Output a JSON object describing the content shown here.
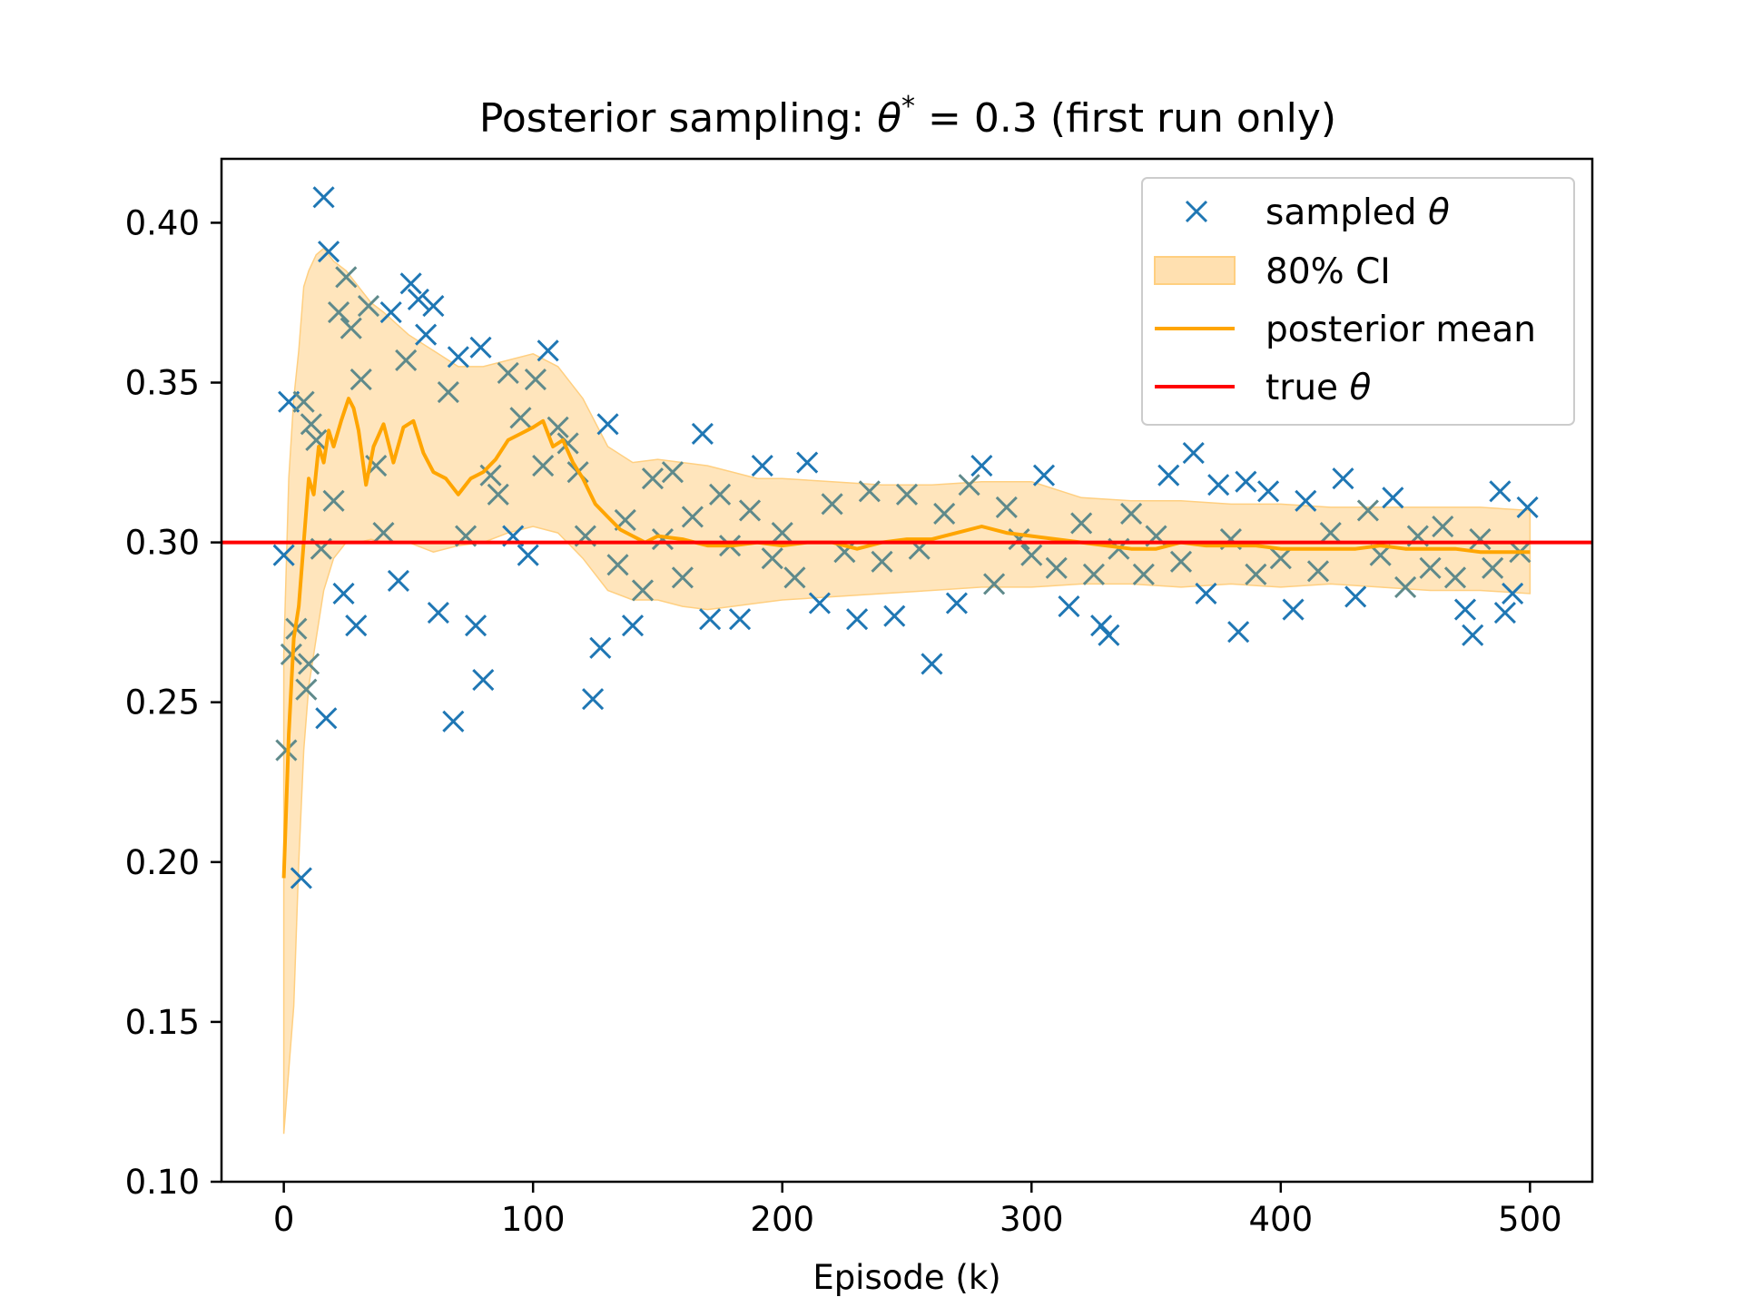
{
  "chart_data": {
    "type": "scatter",
    "title": "Posterior sampling: θ* = 0.3 (first run only)",
    "title_parts": {
      "prefix": "Posterior sampling: ",
      "symbol": "θ",
      "superscript": "*",
      "suffix": " = 0.3 (first run only)"
    },
    "xlabel": "Episode (k)",
    "ylabel": "",
    "xlim": [
      -25,
      525
    ],
    "ylim": [
      0.1,
      0.42
    ],
    "xticks": [
      0,
      100,
      200,
      300,
      400,
      500
    ],
    "xtick_labels": [
      "0",
      "100",
      "200",
      "300",
      "400",
      "500"
    ],
    "yticks": [
      0.1,
      0.15,
      0.2,
      0.25,
      0.3,
      0.35,
      0.4
    ],
    "ytick_labels": [
      "0.10",
      "0.15",
      "0.20",
      "0.25",
      "0.30",
      "0.35",
      "0.40"
    ],
    "grid": false,
    "legend_position": "top-right",
    "colors": {
      "sampled": "#1f77b4",
      "ci_fill": "#ffe0b0",
      "ci_edge": "#ffcf80",
      "mean": "#ffa500",
      "true": "#ff0000"
    },
    "series": [
      {
        "name": "sampled θ",
        "type": "scatter",
        "marker": "x",
        "points": [
          [
            0,
            0.296
          ],
          [
            1,
            0.235
          ],
          [
            2,
            0.344
          ],
          [
            3,
            0.265
          ],
          [
            5,
            0.273
          ],
          [
            7,
            0.195
          ],
          [
            8,
            0.344
          ],
          [
            9,
            0.254
          ],
          [
            10,
            0.262
          ],
          [
            11,
            0.337
          ],
          [
            13,
            0.332
          ],
          [
            15,
            0.298
          ],
          [
            16,
            0.408
          ],
          [
            17,
            0.245
          ],
          [
            18,
            0.391
          ],
          [
            20,
            0.313
          ],
          [
            22,
            0.372
          ],
          [
            24,
            0.284
          ],
          [
            25,
            0.383
          ],
          [
            27,
            0.367
          ],
          [
            29,
            0.274
          ],
          [
            31,
            0.351
          ],
          [
            34,
            0.374
          ],
          [
            37,
            0.324
          ],
          [
            40,
            0.303
          ],
          [
            43,
            0.372
          ],
          [
            46,
            0.288
          ],
          [
            49,
            0.357
          ],
          [
            51,
            0.381
          ],
          [
            54,
            0.376
          ],
          [
            57,
            0.365
          ],
          [
            60,
            0.374
          ],
          [
            62,
            0.278
          ],
          [
            66,
            0.347
          ],
          [
            68,
            0.244
          ],
          [
            70,
            0.358
          ],
          [
            73,
            0.302
          ],
          [
            77,
            0.274
          ],
          [
            79,
            0.361
          ],
          [
            80,
            0.257
          ],
          [
            83,
            0.321
          ],
          [
            86,
            0.315
          ],
          [
            90,
            0.353
          ],
          [
            92,
            0.302
          ],
          [
            95,
            0.339
          ],
          [
            98,
            0.296
          ],
          [
            101,
            0.351
          ],
          [
            104,
            0.324
          ],
          [
            106,
            0.36
          ],
          [
            110,
            0.336
          ],
          [
            114,
            0.331
          ],
          [
            118,
            0.322
          ],
          [
            121,
            0.302
          ],
          [
            124,
            0.251
          ],
          [
            127,
            0.267
          ],
          [
            130,
            0.337
          ],
          [
            134,
            0.293
          ],
          [
            137,
            0.307
          ],
          [
            140,
            0.274
          ],
          [
            144,
            0.285
          ],
          [
            148,
            0.32
          ],
          [
            152,
            0.301
          ],
          [
            156,
            0.322
          ],
          [
            160,
            0.289
          ],
          [
            164,
            0.308
          ],
          [
            168,
            0.334
          ],
          [
            171,
            0.276
          ],
          [
            175,
            0.315
          ],
          [
            179,
            0.299
          ],
          [
            183,
            0.276
          ],
          [
            187,
            0.31
          ],
          [
            192,
            0.324
          ],
          [
            196,
            0.295
          ],
          [
            200,
            0.303
          ],
          [
            205,
            0.289
          ],
          [
            210,
            0.325
          ],
          [
            215,
            0.281
          ],
          [
            220,
            0.312
          ],
          [
            225,
            0.297
          ],
          [
            230,
            0.276
          ],
          [
            235,
            0.316
          ],
          [
            240,
            0.294
          ],
          [
            245,
            0.277
          ],
          [
            250,
            0.315
          ],
          [
            255,
            0.298
          ],
          [
            260,
            0.262
          ],
          [
            265,
            0.309
          ],
          [
            270,
            0.281
          ],
          [
            275,
            0.318
          ],
          [
            280,
            0.324
          ],
          [
            285,
            0.287
          ],
          [
            290,
            0.311
          ],
          [
            295,
            0.301
          ],
          [
            300,
            0.296
          ],
          [
            305,
            0.321
          ],
          [
            310,
            0.292
          ],
          [
            315,
            0.28
          ],
          [
            320,
            0.306
          ],
          [
            325,
            0.29
          ],
          [
            328,
            0.274
          ],
          [
            331,
            0.271
          ],
          [
            335,
            0.298
          ],
          [
            340,
            0.309
          ],
          [
            345,
            0.29
          ],
          [
            350,
            0.302
          ],
          [
            355,
            0.321
          ],
          [
            360,
            0.294
          ],
          [
            365,
            0.328
          ],
          [
            370,
            0.284
          ],
          [
            375,
            0.318
          ],
          [
            380,
            0.301
          ],
          [
            383,
            0.272
          ],
          [
            386,
            0.319
          ],
          [
            390,
            0.29
          ],
          [
            395,
            0.316
          ],
          [
            400,
            0.295
          ],
          [
            405,
            0.279
          ],
          [
            410,
            0.313
          ],
          [
            415,
            0.291
          ],
          [
            420,
            0.303
          ],
          [
            425,
            0.32
          ],
          [
            430,
            0.283
          ],
          [
            435,
            0.31
          ],
          [
            440,
            0.296
          ],
          [
            445,
            0.314
          ],
          [
            450,
            0.286
          ],
          [
            455,
            0.302
          ],
          [
            460,
            0.292
          ],
          [
            465,
            0.305
          ],
          [
            470,
            0.289
          ],
          [
            474,
            0.279
          ],
          [
            477,
            0.271
          ],
          [
            480,
            0.301
          ],
          [
            485,
            0.292
          ],
          [
            488,
            0.316
          ],
          [
            490,
            0.278
          ],
          [
            493,
            0.284
          ],
          [
            496,
            0.297
          ],
          [
            499,
            0.311
          ]
        ]
      },
      {
        "name": "80% CI",
        "type": "area",
        "x": [
          0,
          2,
          4,
          6,
          8,
          10,
          13,
          16,
          20,
          25,
          30,
          35,
          40,
          50,
          60,
          70,
          80,
          90,
          100,
          110,
          120,
          130,
          140,
          150,
          160,
          170,
          180,
          190,
          200,
          220,
          240,
          260,
          280,
          300,
          320,
          340,
          360,
          380,
          400,
          420,
          440,
          460,
          480,
          500
        ],
        "lower": [
          0.115,
          0.135,
          0.155,
          0.2,
          0.235,
          0.255,
          0.27,
          0.285,
          0.295,
          0.3,
          0.3,
          0.301,
          0.3,
          0.3,
          0.297,
          0.299,
          0.3,
          0.303,
          0.305,
          0.303,
          0.295,
          0.285,
          0.282,
          0.282,
          0.28,
          0.279,
          0.28,
          0.281,
          0.282,
          0.283,
          0.284,
          0.285,
          0.286,
          0.286,
          0.287,
          0.287,
          0.286,
          0.287,
          0.286,
          0.287,
          0.286,
          0.285,
          0.285,
          0.284
        ],
        "upper": [
          0.265,
          0.32,
          0.345,
          0.36,
          0.38,
          0.385,
          0.39,
          0.392,
          0.388,
          0.385,
          0.38,
          0.375,
          0.372,
          0.365,
          0.36,
          0.355,
          0.355,
          0.357,
          0.359,
          0.355,
          0.345,
          0.33,
          0.325,
          0.326,
          0.325,
          0.324,
          0.322,
          0.32,
          0.32,
          0.319,
          0.318,
          0.318,
          0.319,
          0.319,
          0.314,
          0.313,
          0.313,
          0.312,
          0.312,
          0.311,
          0.311,
          0.311,
          0.311,
          0.31
        ]
      },
      {
        "name": "posterior mean",
        "type": "line",
        "x": [
          0,
          2,
          4,
          6,
          8,
          10,
          12,
          14,
          16,
          18,
          20,
          23,
          26,
          28,
          30,
          33,
          36,
          40,
          44,
          48,
          52,
          56,
          60,
          65,
          70,
          75,
          80,
          85,
          90,
          95,
          100,
          104,
          108,
          112,
          116,
          120,
          125,
          130,
          135,
          140,
          145,
          150,
          160,
          170,
          180,
          190,
          200,
          210,
          220,
          230,
          240,
          250,
          260,
          270,
          280,
          290,
          300,
          310,
          320,
          330,
          340,
          350,
          360,
          370,
          380,
          390,
          400,
          410,
          420,
          430,
          440,
          450,
          460,
          470,
          480,
          490,
          500
        ],
        "y": [
          0.195,
          0.24,
          0.27,
          0.28,
          0.3,
          0.32,
          0.315,
          0.33,
          0.325,
          0.335,
          0.33,
          0.338,
          0.345,
          0.342,
          0.335,
          0.318,
          0.33,
          0.337,
          0.325,
          0.336,
          0.338,
          0.328,
          0.322,
          0.32,
          0.315,
          0.32,
          0.322,
          0.326,
          0.332,
          0.334,
          0.336,
          0.338,
          0.33,
          0.332,
          0.325,
          0.32,
          0.312,
          0.308,
          0.304,
          0.302,
          0.3,
          0.302,
          0.301,
          0.299,
          0.299,
          0.3,
          0.299,
          0.3,
          0.3,
          0.298,
          0.3,
          0.301,
          0.301,
          0.303,
          0.305,
          0.303,
          0.302,
          0.301,
          0.3,
          0.299,
          0.298,
          0.298,
          0.3,
          0.299,
          0.299,
          0.299,
          0.298,
          0.298,
          0.298,
          0.298,
          0.299,
          0.298,
          0.298,
          0.298,
          0.297,
          0.297,
          0.297
        ]
      },
      {
        "name": "true θ",
        "type": "hline",
        "y": 0.3
      }
    ],
    "legend": [
      {
        "key": "sampled",
        "prefix": "sampled ",
        "symbol": "θ"
      },
      {
        "key": "ci",
        "prefix": "80% CI",
        "symbol": ""
      },
      {
        "key": "mean",
        "prefix": "posterior mean",
        "symbol": ""
      },
      {
        "key": "true",
        "prefix": "true ",
        "symbol": "θ"
      }
    ]
  }
}
